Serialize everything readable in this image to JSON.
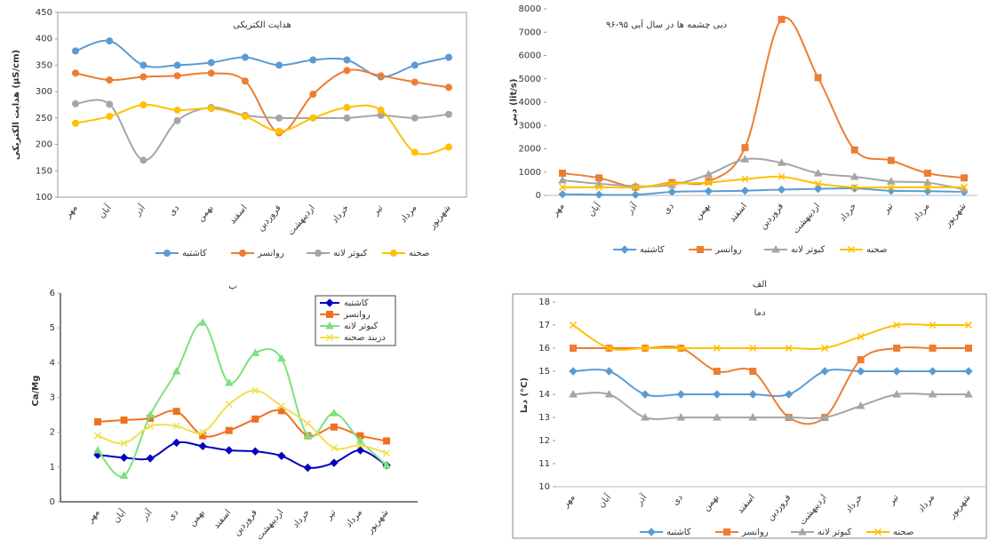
{
  "chart_data": [
    {
      "type": "line",
      "title": "هدایت الکتریکی",
      "y_label": "هدایت الکتریکی (µS/cm)",
      "categories": [
        "مهر",
        "آبان",
        "آذر",
        "دی",
        "بهمن",
        "اسفند",
        "فروردین",
        "اردیبهشت",
        "خرداد",
        "تیر",
        "مرداد",
        "شهریور"
      ],
      "ylim": [
        100,
        450
      ],
      "yticks": [
        100,
        150,
        200,
        250,
        300,
        350,
        400,
        450
      ],
      "legend": "bottom",
      "series": [
        {
          "name": "کاشتبه",
          "color": "#5b9bd5",
          "marker": "circle",
          "values": [
            377,
            396,
            350,
            350,
            355,
            365,
            350,
            360,
            360,
            328,
            350,
            365
          ]
        },
        {
          "name": "روانسر",
          "color": "#ed7d31",
          "marker": "circle",
          "values": [
            335,
            322,
            328,
            330,
            335,
            320,
            222,
            295,
            340,
            330,
            318,
            308
          ]
        },
        {
          "name": "کبوتر لانه",
          "color": "#a5a5a5",
          "marker": "circle",
          "values": [
            277,
            276,
            170,
            245,
            270,
            255,
            250,
            250,
            250,
            255,
            250,
            257
          ]
        },
        {
          "name": "صحنه",
          "color": "#ffc000",
          "marker": "circle",
          "values": [
            240,
            253,
            275,
            265,
            268,
            253,
            225,
            250,
            270,
            265,
            185,
            195
          ]
        }
      ]
    },
    {
      "type": "line",
      "title": "دبی چشمه ها در سال آبی ۹۵-۹۶",
      "y_label": "دبی (lit/s)",
      "categories": [
        "مهر",
        "آبان",
        "آذر",
        "دی",
        "بهمن",
        "اسفند",
        "فروردین",
        "اردیبهشت",
        "خرداد",
        "تیر",
        "مرداد",
        "شهریور"
      ],
      "ylim": [
        0,
        8000
      ],
      "yticks": [
        0,
        1000,
        2000,
        3000,
        4000,
        5000,
        6000,
        7000,
        8000
      ],
      "legend": "bottom",
      "series": [
        {
          "name": "کاشتبه",
          "color": "#5b9bd5",
          "marker": "diamond",
          "values": [
            50,
            30,
            30,
            150,
            180,
            200,
            250,
            280,
            300,
            200,
            180,
            150
          ]
        },
        {
          "name": "روانسر",
          "color": "#ed7d31",
          "marker": "square",
          "values": [
            950,
            750,
            350,
            550,
            600,
            2050,
            7550,
            5050,
            1950,
            1500,
            950,
            750
          ]
        },
        {
          "name": "کبوتر لانه",
          "color": "#a5a5a5",
          "marker": "triangle",
          "values": [
            650,
            500,
            400,
            450,
            900,
            1550,
            1400,
            950,
            800,
            600,
            550,
            250
          ]
        },
        {
          "name": "صحنه",
          "color": "#ffc000",
          "marker": "x",
          "values": [
            350,
            350,
            350,
            500,
            550,
            700,
            800,
            500,
            350,
            350,
            350,
            350
          ]
        }
      ]
    },
    {
      "type": "line",
      "panel_label": "ب",
      "y_label": "Ca/Mg",
      "categories": [
        "مهر",
        "آبان",
        "آذر",
        "دی",
        "بهمن",
        "اسفند",
        "فروردین",
        "اردیبهشت",
        "خرداد",
        "تیر",
        "مرداد",
        "شهریور"
      ],
      "ylim": [
        0,
        6
      ],
      "yticks": [
        0,
        1,
        2,
        3,
        4,
        5,
        6
      ],
      "legend": "inside-top",
      "series": [
        {
          "name": "کاشتبه",
          "color": "#0000c0",
          "marker": "diamond",
          "values": [
            1.35,
            1.27,
            1.25,
            1.7,
            1.6,
            1.48,
            1.45,
            1.32,
            0.98,
            1.12,
            1.48,
            1.05
          ]
        },
        {
          "name": "روانسر",
          "color": "#f07020",
          "marker": "square",
          "values": [
            2.3,
            2.35,
            2.4,
            2.6,
            1.9,
            2.05,
            2.38,
            2.62,
            1.9,
            2.15,
            1.9,
            1.75
          ]
        },
        {
          "name": "کبوتر لانه",
          "color": "#7ee07e",
          "marker": "triangle",
          "values": [
            1.48,
            0.75,
            2.5,
            3.75,
            5.15,
            3.42,
            4.28,
            4.12,
            1.9,
            2.55,
            1.75,
            1.05
          ]
        },
        {
          "name": "دربند صحنه",
          "color": "#f0e050",
          "marker": "x",
          "values": [
            1.9,
            1.68,
            2.17,
            2.18,
            2.0,
            2.8,
            3.2,
            2.75,
            2.25,
            1.55,
            1.62,
            1.4
          ]
        }
      ]
    },
    {
      "type": "line",
      "panel_label": "الف",
      "title": "دما",
      "y_label": "دما (°C)",
      "categories": [
        "مهر",
        "آبان",
        "آذر",
        "دی",
        "بهمن",
        "اسفند",
        "فروردین",
        "اردیبهشت",
        "خرداد",
        "تیر",
        "مرداد",
        "شهریور"
      ],
      "ylim": [
        10,
        18
      ],
      "yticks": [
        10,
        11,
        12,
        13,
        14,
        15,
        16,
        17,
        18
      ],
      "legend": "bottom",
      "series": [
        {
          "name": "کاشتبه",
          "color": "#5b9bd5",
          "marker": "diamond",
          "values": [
            15,
            15,
            14,
            14,
            14,
            14,
            14,
            15,
            15,
            15,
            15,
            15
          ]
        },
        {
          "name": "روانسر",
          "color": "#ed7d31",
          "marker": "square",
          "values": [
            16,
            16,
            16,
            16,
            15,
            15,
            13,
            13,
            15.5,
            16,
            16,
            16
          ]
        },
        {
          "name": "کبوتر لانه",
          "color": "#a5a5a5",
          "marker": "triangle",
          "values": [
            14,
            14,
            13,
            13,
            13,
            13,
            13,
            13,
            13.5,
            14,
            14,
            14
          ]
        },
        {
          "name": "صحنه",
          "color": "#ffc000",
          "marker": "x",
          "values": [
            17,
            16,
            16,
            16,
            16,
            16,
            16,
            16,
            16.5,
            17,
            17,
            17
          ]
        }
      ]
    }
  ]
}
